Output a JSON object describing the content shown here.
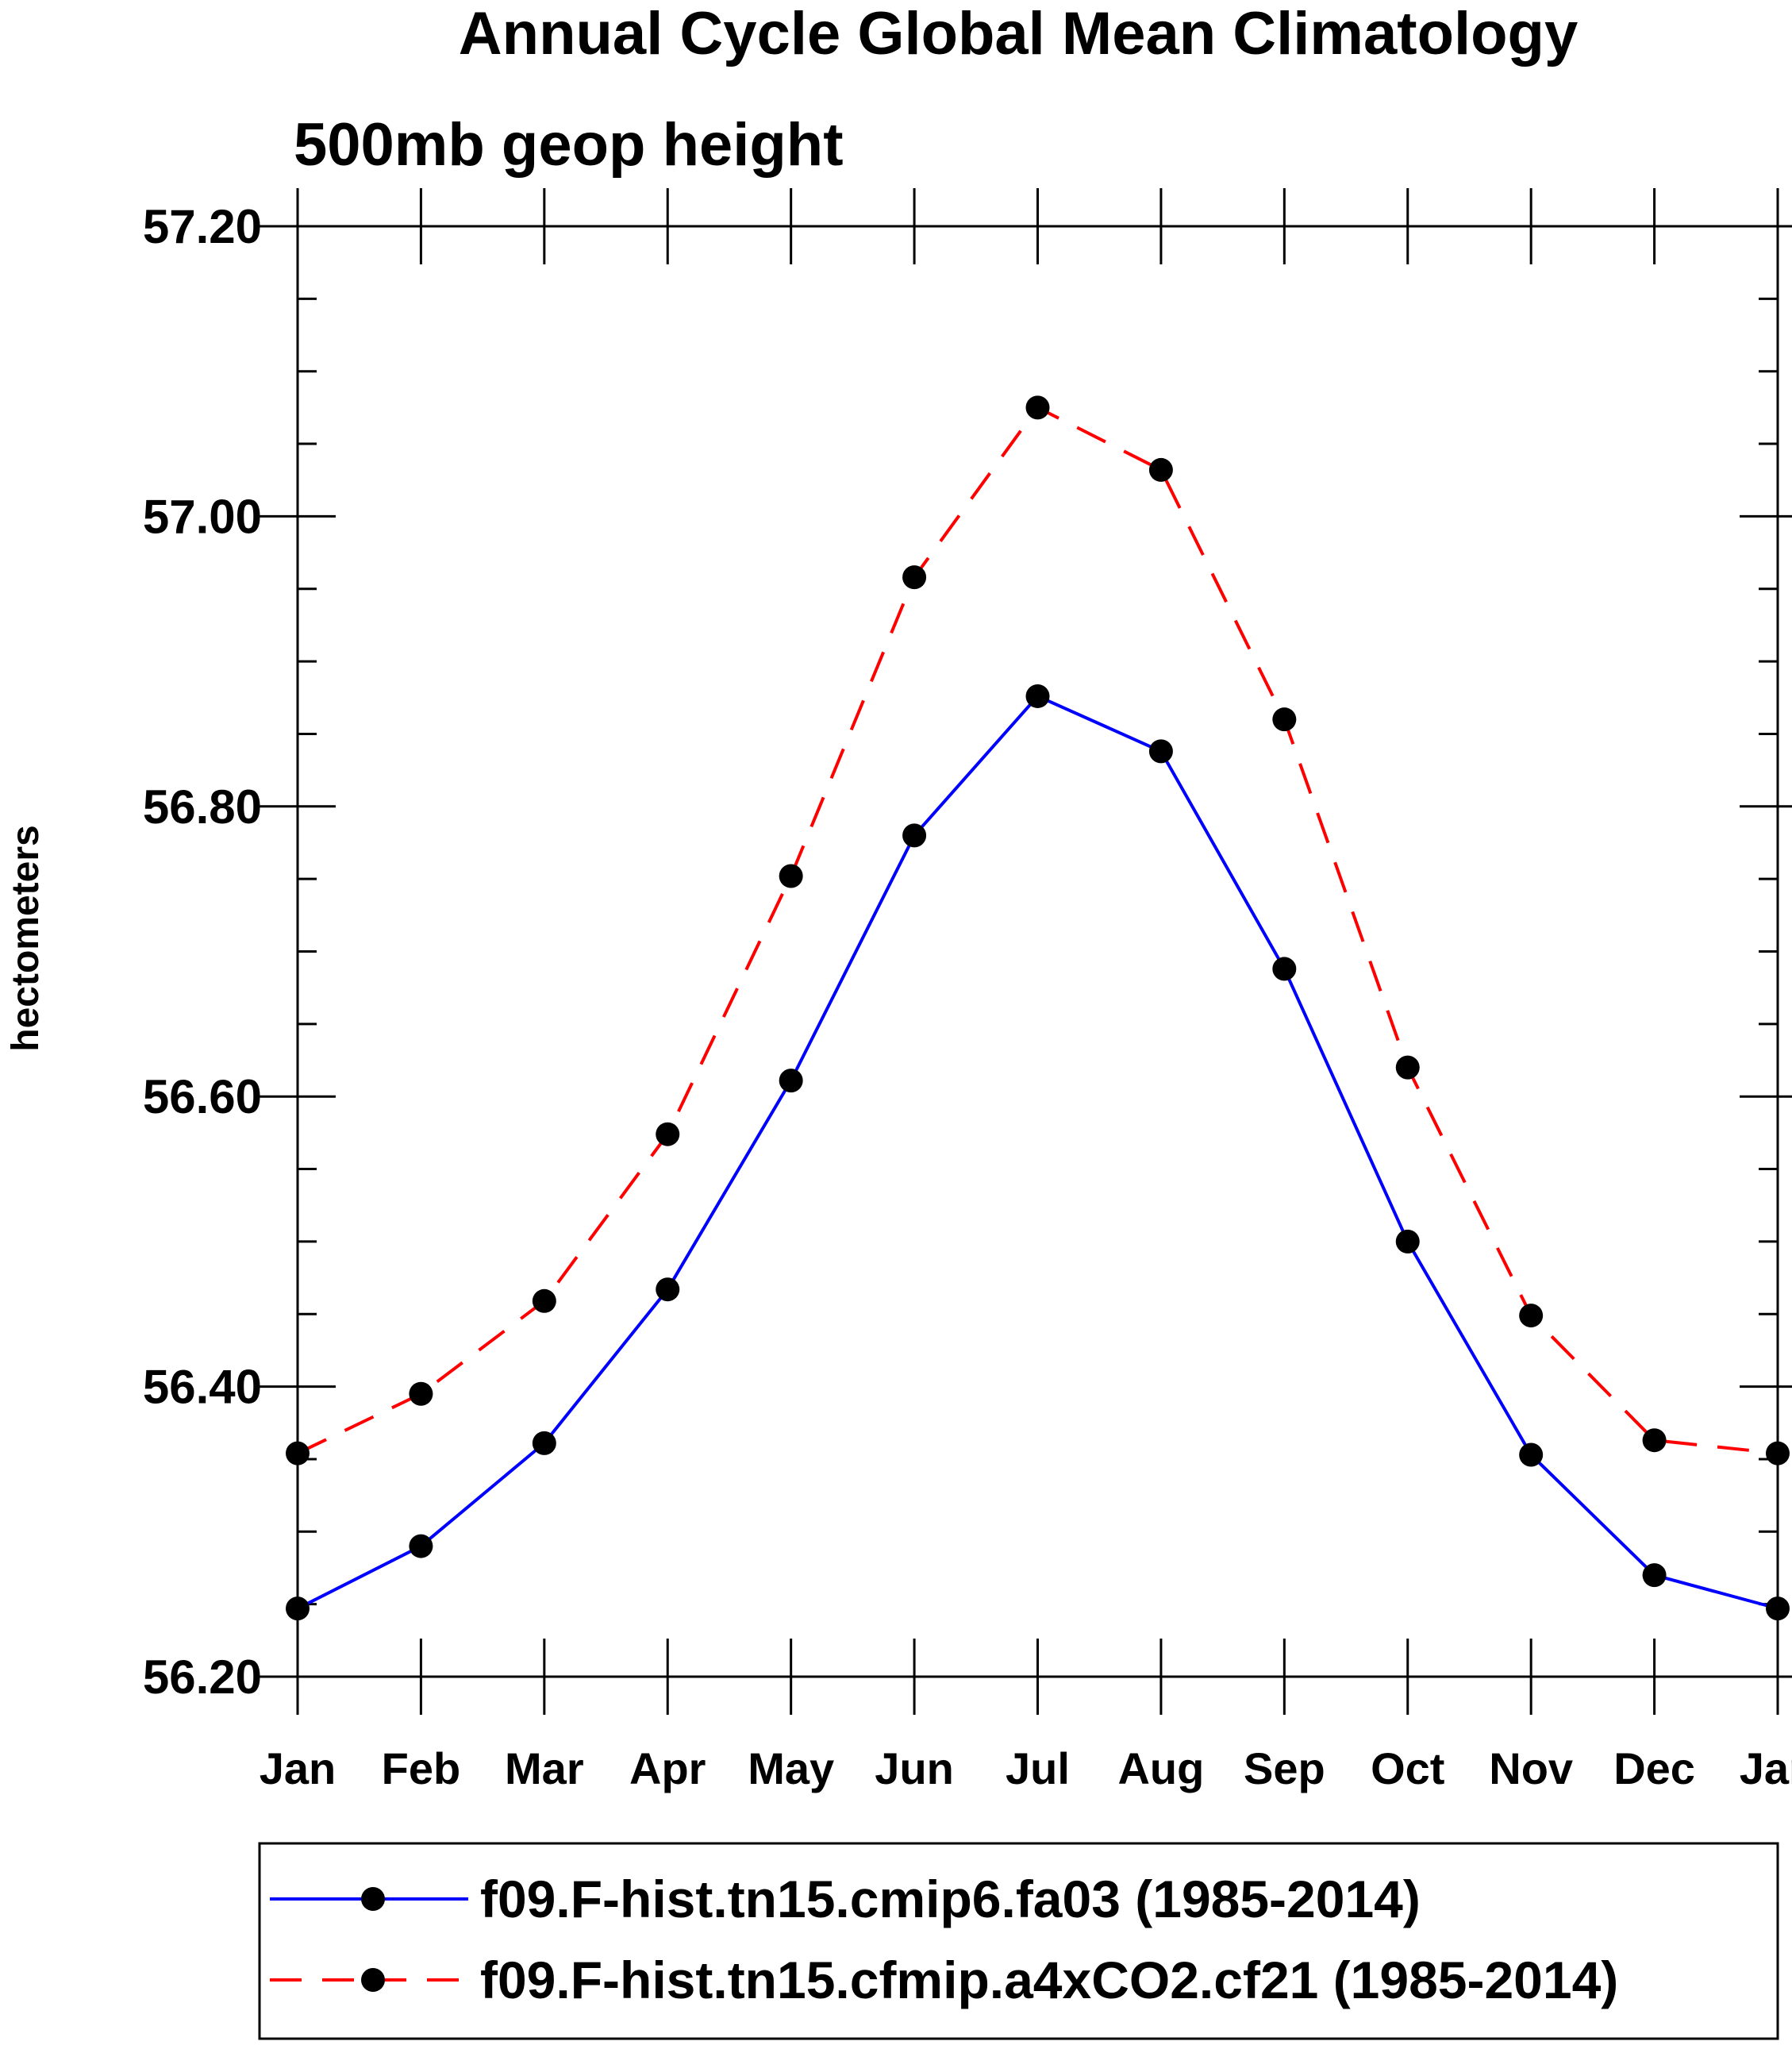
{
  "chart_data": {
    "type": "line",
    "title": "Annual Cycle Global Mean Climatology",
    "subtitle": "500mb geop height",
    "xlabel": "",
    "ylabel": "hectometers",
    "categories": [
      "Jan",
      "Feb",
      "Mar",
      "Apr",
      "May",
      "Jun",
      "Jul",
      "Aug",
      "Sep",
      "Oct",
      "Nov",
      "Dec",
      "Jan"
    ],
    "ylim": [
      56.2,
      57.2
    ],
    "yticks": [
      56.2,
      56.4,
      56.6,
      56.8,
      57.0,
      57.2
    ],
    "ytick_labels": [
      "56.20",
      "56.40",
      "56.60",
      "56.80",
      "57.00",
      "57.20"
    ],
    "yminor_step": 0.05,
    "grid": false,
    "legend_position": "bottom",
    "series": [
      {
        "name": "f09.F-hist.tn15.cmip6.fa03 (1985-2014)",
        "color": "#0000ff",
        "line_style": "solid",
        "marker": "filled-circle",
        "marker_color": "#000000",
        "values": [
          56.247,
          56.29,
          56.361,
          56.467,
          56.611,
          56.78,
          56.876,
          56.838,
          56.688,
          56.5,
          56.353,
          56.27,
          56.247
        ]
      },
      {
        "name": "f09.F-hist.tn15.cfmip.a4xCO2.cf21 (1985-2014)",
        "color": "#ff0000",
        "line_style": "dashed",
        "marker": "filled-circle",
        "marker_color": "#000000",
        "values": [
          56.354,
          56.395,
          56.459,
          56.574,
          56.752,
          56.958,
          57.075,
          57.032,
          56.86,
          56.62,
          56.449,
          56.363,
          56.354
        ]
      }
    ]
  }
}
